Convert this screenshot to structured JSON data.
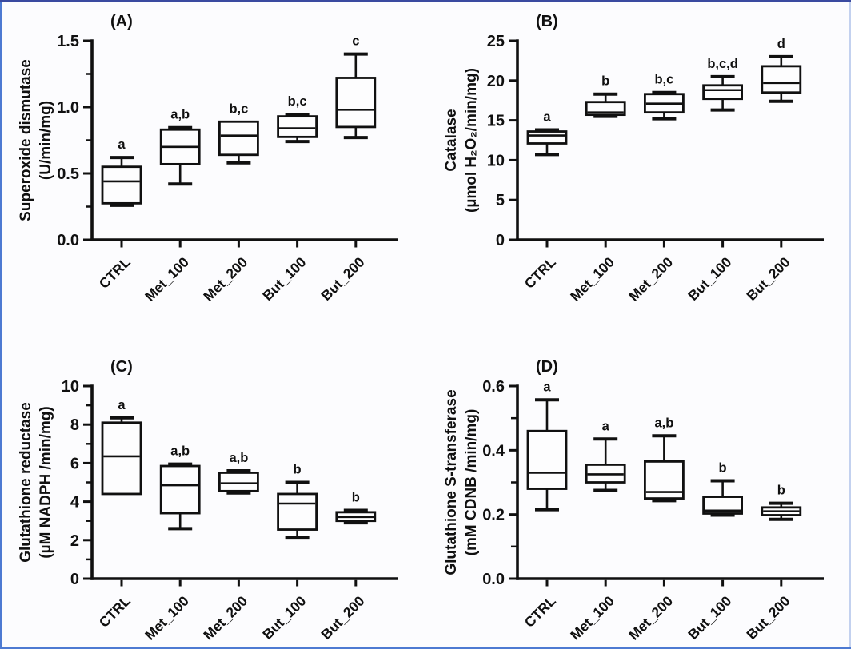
{
  "figure": {
    "ink_color": "#101010",
    "background": "#fcfcfe",
    "frame": {
      "top": "#3a4aa0",
      "left": "#4d7ad2",
      "bottom": "#4d7ad2",
      "right": "#c3d1ef"
    }
  },
  "chart_data": [
    {
      "type": "boxplot",
      "panel": "(A)",
      "ylabel_line1": "Superoxide dismutase",
      "ylabel_line2": "(U/min/mg)",
      "ylim": [
        0,
        1.5
      ],
      "yticks": [
        0.0,
        0.5,
        1.0,
        1.5
      ],
      "ytick_labels": [
        "0.0",
        "0.5",
        "1.0",
        "1.5"
      ],
      "minor_ticks": true,
      "grid": false,
      "categories": [
        "CTRL",
        "Met_100",
        "Met_200",
        "But_100",
        "But_200"
      ],
      "boxes": [
        {
          "label": "CTRL",
          "lo": 0.26,
          "q1": 0.275,
          "med": 0.44,
          "q3": 0.55,
          "hi": 0.62,
          "sig": "a"
        },
        {
          "label": "Met_100",
          "lo": 0.42,
          "q1": 0.57,
          "med": 0.7,
          "q3": 0.83,
          "hi": 0.845,
          "sig": "a,b"
        },
        {
          "label": "Met_200",
          "lo": 0.58,
          "q1": 0.64,
          "med": 0.785,
          "q3": 0.89,
          "hi": 0.89,
          "sig": "b,c"
        },
        {
          "label": "But_100",
          "lo": 0.74,
          "q1": 0.775,
          "med": 0.84,
          "q3": 0.93,
          "hi": 0.945,
          "sig": "b,c"
        },
        {
          "label": "But_200",
          "lo": 0.77,
          "q1": 0.85,
          "med": 0.98,
          "q3": 1.22,
          "hi": 1.4,
          "sig": "c"
        }
      ]
    },
    {
      "type": "boxplot",
      "panel": "(B)",
      "ylabel_line1": "Catalase",
      "ylabel_line2": "(µmol H₂O₂/min/mg)",
      "ylim": [
        0,
        25
      ],
      "yticks": [
        0,
        5,
        10,
        15,
        20,
        25
      ],
      "ytick_labels": [
        "0",
        "5",
        "10",
        "15",
        "20",
        "25"
      ],
      "minor_ticks": false,
      "grid": false,
      "categories": [
        "CTRL",
        "Met_100",
        "Met_200",
        "But_100",
        "But_200"
      ],
      "boxes": [
        {
          "label": "CTRL",
          "lo": 10.7,
          "q1": 12.1,
          "med": 13.1,
          "q3": 13.6,
          "hi": 13.8,
          "sig": "a"
        },
        {
          "label": "Met_100",
          "lo": 15.5,
          "q1": 15.7,
          "med": 16.0,
          "q3": 17.3,
          "hi": 18.3,
          "sig": "b"
        },
        {
          "label": "Met_200",
          "lo": 15.2,
          "q1": 16.0,
          "med": 17.1,
          "q3": 18.3,
          "hi": 18.5,
          "sig": "b,c"
        },
        {
          "label": "But_100",
          "lo": 16.3,
          "q1": 17.7,
          "med": 18.8,
          "q3": 19.4,
          "hi": 20.5,
          "sig": "b,c,d"
        },
        {
          "label": "But_200",
          "lo": 17.4,
          "q1": 18.5,
          "med": 19.7,
          "q3": 21.8,
          "hi": 23.0,
          "sig": "d"
        }
      ]
    },
    {
      "type": "boxplot",
      "panel": "(C)",
      "ylabel_line1": "Glutathione reductase",
      "ylabel_line2": "(µM NADPH /min/mg)",
      "ylim": [
        0,
        10
      ],
      "yticks": [
        0,
        2,
        4,
        6,
        8,
        10
      ],
      "ytick_labels": [
        "0",
        "2",
        "4",
        "6",
        "8",
        "10"
      ],
      "minor_ticks": true,
      "grid": false,
      "categories": [
        "CTRL",
        "Met_100",
        "Met_200",
        "But_100",
        "But_200"
      ],
      "boxes": [
        {
          "label": "CTRL",
          "lo": 4.4,
          "q1": 4.4,
          "med": 6.35,
          "q3": 8.1,
          "hi": 8.35,
          "sig": "a"
        },
        {
          "label": "Met_100",
          "lo": 2.6,
          "q1": 3.4,
          "med": 4.85,
          "q3": 5.85,
          "hi": 5.95,
          "sig": "a,b"
        },
        {
          "label": "Met_200",
          "lo": 4.45,
          "q1": 4.55,
          "med": 4.95,
          "q3": 5.5,
          "hi": 5.6,
          "sig": "a,b"
        },
        {
          "label": "But_100",
          "lo": 2.15,
          "q1": 2.55,
          "med": 3.9,
          "q3": 4.4,
          "hi": 5.0,
          "sig": "b"
        },
        {
          "label": "But_200",
          "lo": 2.9,
          "q1": 3.0,
          "med": 3.2,
          "q3": 3.45,
          "hi": 3.55,
          "sig": "b"
        }
      ]
    },
    {
      "type": "boxplot",
      "panel": "(D)",
      "ylabel_line1": "Glutathione S-transferase",
      "ylabel_line2": "(mM CDNB /min/mg)",
      "ylim": [
        0,
        0.6
      ],
      "yticks": [
        0.0,
        0.2,
        0.4,
        0.6
      ],
      "ytick_labels": [
        "0.0",
        "0.2",
        "0.4",
        "0.6"
      ],
      "minor_ticks": true,
      "grid": false,
      "categories": [
        "CTRL",
        "Met_100",
        "Met_200",
        "But_100",
        "But_200"
      ],
      "boxes": [
        {
          "label": "CTRL",
          "lo": 0.215,
          "q1": 0.28,
          "med": 0.33,
          "q3": 0.46,
          "hi": 0.557,
          "sig": "a"
        },
        {
          "label": "Met_100",
          "lo": 0.275,
          "q1": 0.3,
          "med": 0.325,
          "q3": 0.355,
          "hi": 0.435,
          "sig": "a"
        },
        {
          "label": "Met_200",
          "lo": 0.243,
          "q1": 0.25,
          "med": 0.27,
          "q3": 0.365,
          "hi": 0.445,
          "sig": "a,b"
        },
        {
          "label": "But_100",
          "lo": 0.198,
          "q1": 0.203,
          "med": 0.212,
          "q3": 0.255,
          "hi": 0.305,
          "sig": "b"
        },
        {
          "label": "But_200",
          "lo": 0.185,
          "q1": 0.198,
          "med": 0.21,
          "q3": 0.222,
          "hi": 0.235,
          "sig": "b"
        }
      ]
    }
  ]
}
